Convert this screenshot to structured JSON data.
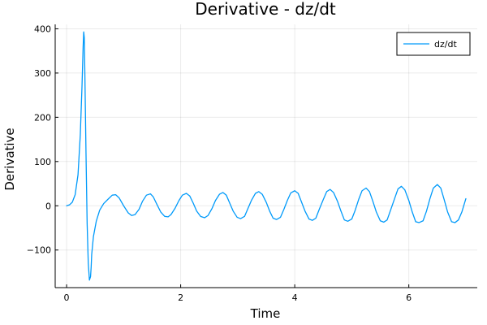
{
  "chart_data": {
    "type": "line",
    "title": "Derivative - dz/dt",
    "xlabel": "Time",
    "ylabel": "Derivative",
    "xlim": [
      -0.2,
      7.2
    ],
    "ylim": [
      -185,
      410
    ],
    "x_ticks": [
      0,
      2,
      4,
      6
    ],
    "x_tick_labels": [
      "0",
      "2",
      "4",
      "6"
    ],
    "y_ticks": [
      -100,
      0,
      100,
      200,
      300,
      400
    ],
    "y_tick_labels": [
      "−100",
      "0",
      "100",
      "200",
      "300",
      "400"
    ],
    "grid": true,
    "legend_position": "top-right",
    "series": [
      {
        "name": "dz/dt",
        "color": "#009AFA",
        "x": [
          0.0,
          0.05,
          0.1,
          0.15,
          0.2,
          0.24,
          0.27,
          0.29,
          0.3,
          0.31,
          0.32,
          0.34,
          0.36,
          0.38,
          0.4,
          0.42,
          0.43,
          0.44,
          0.47,
          0.52,
          0.58,
          0.65,
          0.72,
          0.8,
          0.86,
          0.92,
          1.0,
          1.08,
          1.14,
          1.2,
          1.27,
          1.33,
          1.4,
          1.47,
          1.52,
          1.58,
          1.65,
          1.72,
          1.78,
          1.83,
          1.9,
          1.97,
          2.03,
          2.1,
          2.16,
          2.22,
          2.28,
          2.35,
          2.42,
          2.48,
          2.55,
          2.61,
          2.68,
          2.74,
          2.8,
          2.86,
          2.92,
          2.99,
          3.05,
          3.12,
          3.18,
          3.24,
          3.31,
          3.37,
          3.43,
          3.5,
          3.56,
          3.62,
          3.68,
          3.75,
          3.81,
          3.87,
          3.93,
          4.0,
          4.06,
          4.12,
          4.18,
          4.25,
          4.31,
          4.37,
          4.43,
          4.5,
          4.56,
          4.62,
          4.68,
          4.75,
          4.81,
          4.87,
          4.93,
          5.0,
          5.06,
          5.12,
          5.18,
          5.25,
          5.31,
          5.37,
          5.43,
          5.5,
          5.56,
          5.62,
          5.68,
          5.75,
          5.81,
          5.87,
          5.93,
          6.0,
          6.06,
          6.12,
          6.18,
          6.25,
          6.31,
          6.37,
          6.43,
          6.5,
          6.56,
          6.62,
          6.68,
          6.75,
          6.81,
          6.87,
          6.93,
          7.0
        ],
        "y": [
          0,
          2,
          8,
          25,
          70,
          160,
          270,
          360,
          393,
          380,
          300,
          120,
          -40,
          -130,
          -168,
          -160,
          -140,
          -110,
          -70,
          -35,
          -10,
          5,
          14,
          24,
          25,
          18,
          0,
          -16,
          -22,
          -20,
          -8,
          10,
          24,
          27,
          20,
          4,
          -14,
          -24,
          -25,
          -20,
          -6,
          12,
          24,
          28,
          22,
          6,
          -12,
          -24,
          -27,
          -22,
          -6,
          12,
          26,
          30,
          24,
          6,
          -12,
          -26,
          -29,
          -24,
          -6,
          12,
          28,
          32,
          26,
          8,
          -12,
          -28,
          -31,
          -26,
          -8,
          12,
          29,
          34,
          28,
          8,
          -12,
          -30,
          -33,
          -28,
          -8,
          14,
          32,
          37,
          30,
          10,
          -12,
          -32,
          -35,
          -30,
          -10,
          14,
          34,
          40,
          32,
          10,
          -14,
          -34,
          -37,
          -32,
          -10,
          16,
          38,
          44,
          36,
          12,
          -14,
          -36,
          -38,
          -34,
          -12,
          16,
          40,
          48,
          40,
          14,
          -14,
          -36,
          -38,
          -32,
          -14,
          16
        ]
      }
    ]
  }
}
